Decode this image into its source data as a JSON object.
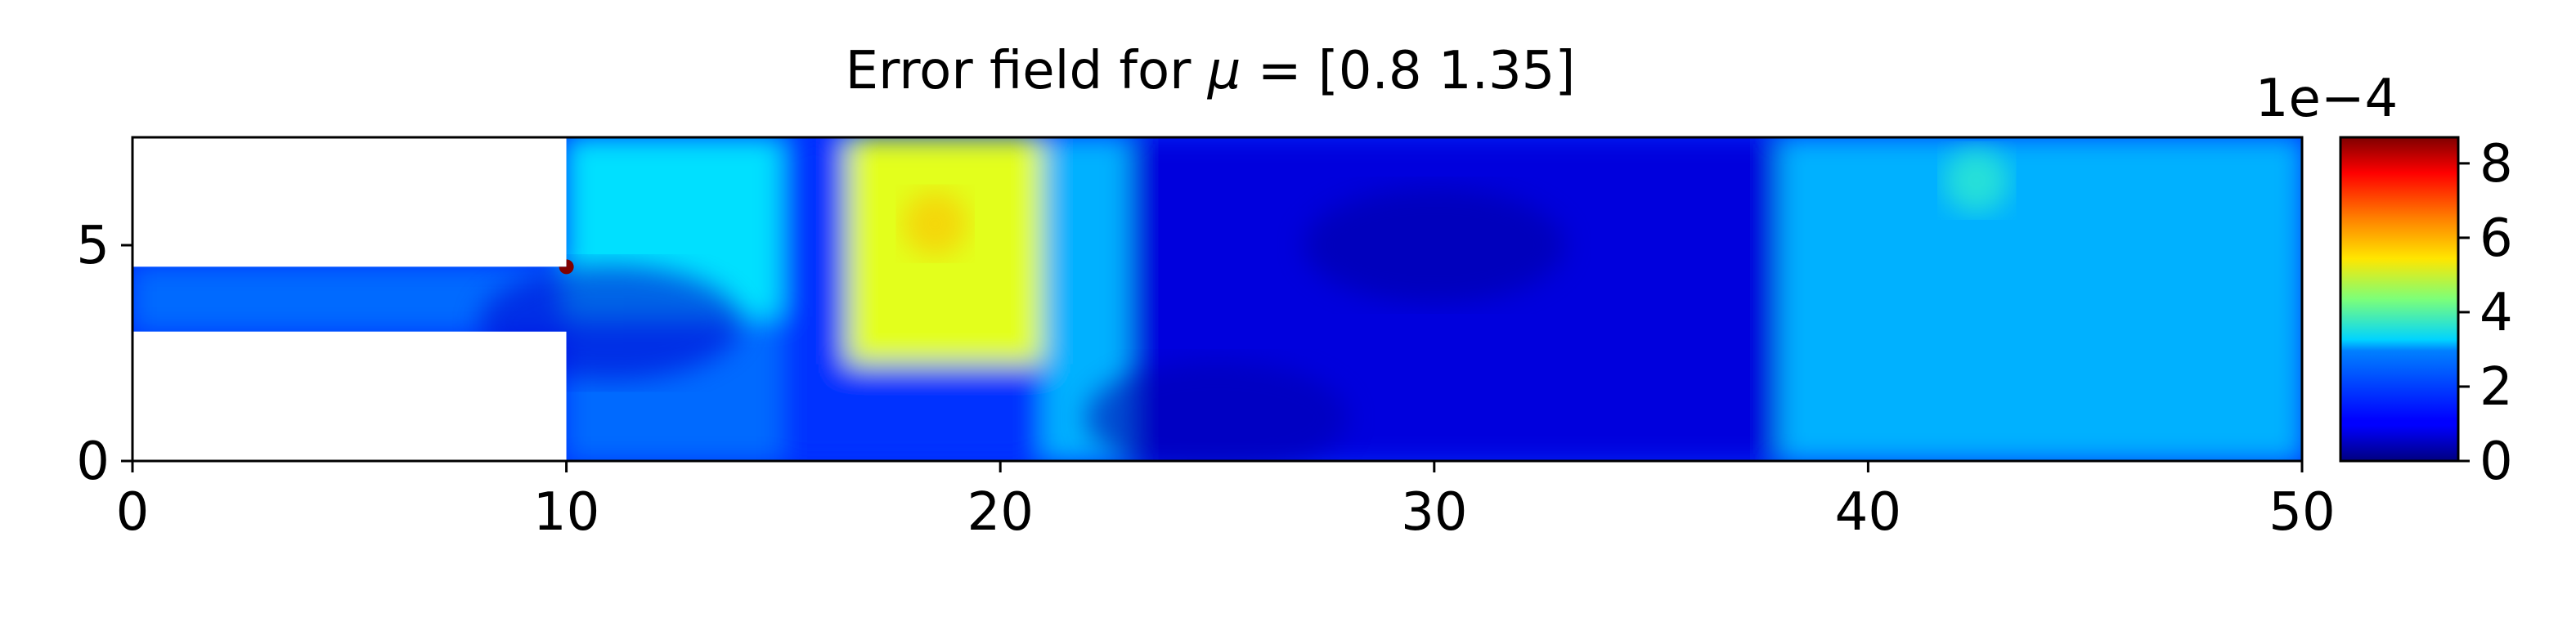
{
  "chart_data": {
    "type": "heatmap",
    "title_prefix": "Error field for ",
    "title_symbol": "μ",
    "title_suffix": " = [0.8  1.35]",
    "mu": [
      0.8,
      1.35
    ],
    "x": {
      "min": 0,
      "max": 50,
      "ticks": [
        0,
        10,
        20,
        30,
        40,
        50
      ],
      "tick_labels": [
        "0",
        "10",
        "20",
        "30",
        "40",
        "50"
      ]
    },
    "y": {
      "min": 0,
      "max": 7.5,
      "ticks": [
        0,
        5
      ],
      "tick_labels": [
        "0",
        "5"
      ]
    },
    "domain_description": "Backward-facing step channel: inlet strip x 0–10, y 3–4.5; main channel x 10–50, y 0–7.5",
    "inlet": {
      "x": [
        0,
        10
      ],
      "y": [
        3,
        4.5
      ]
    },
    "channel": {
      "x": [
        10,
        50
      ],
      "y": [
        0,
        7.5
      ]
    },
    "colorbar": {
      "min": 0,
      "max": 8.7,
      "ticks": [
        0,
        2,
        4,
        6,
        8
      ],
      "tick_labels": [
        "0",
        "2",
        "4",
        "6",
        "8"
      ],
      "offset_label": "1e−4",
      "colormap": "jet"
    },
    "error_regions": [
      {
        "x": [
          0,
          10
        ],
        "y": [
          3,
          4.5
        ],
        "value": 2.0
      },
      {
        "x": [
          10,
          15
        ],
        "y": [
          3.3,
          7.5
        ],
        "value": 3.0
      },
      {
        "x": [
          10,
          15
        ],
        "y": [
          0,
          3.3
        ],
        "value": 2.0
      },
      {
        "x": [
          15,
          16.5
        ],
        "y": [
          0,
          7.5
        ],
        "value": 1.5
      },
      {
        "x": [
          16.5,
          21
        ],
        "y": [
          2.2,
          7.5
        ],
        "value": 5.2
      },
      {
        "x": [
          16.5,
          21
        ],
        "y": [
          0,
          2.2
        ],
        "value": 1.5
      },
      {
        "x": [
          21,
          23
        ],
        "y": [
          0,
          7.5
        ],
        "value": 2.6
      },
      {
        "x": [
          23,
          38
        ],
        "y": [
          0,
          7.5
        ],
        "value": 0.8
      },
      {
        "x": [
          38,
          50
        ],
        "y": [
          0,
          7.5
        ],
        "value": 2.6
      }
    ],
    "hotspots": [
      {
        "x": 10,
        "y": 4.5,
        "value": 8.7
      },
      {
        "x": 18.5,
        "y": 5.5,
        "value": 6.0
      },
      {
        "x": 42.5,
        "y": 6.5,
        "value": 3.8
      }
    ],
    "cold_spots": [
      {
        "x": 30,
        "y": 5,
        "value": 0.3
      },
      {
        "x": 25,
        "y": 1,
        "value": 0.4
      },
      {
        "x": 11,
        "y": 3.2,
        "value": 0.7
      }
    ]
  }
}
